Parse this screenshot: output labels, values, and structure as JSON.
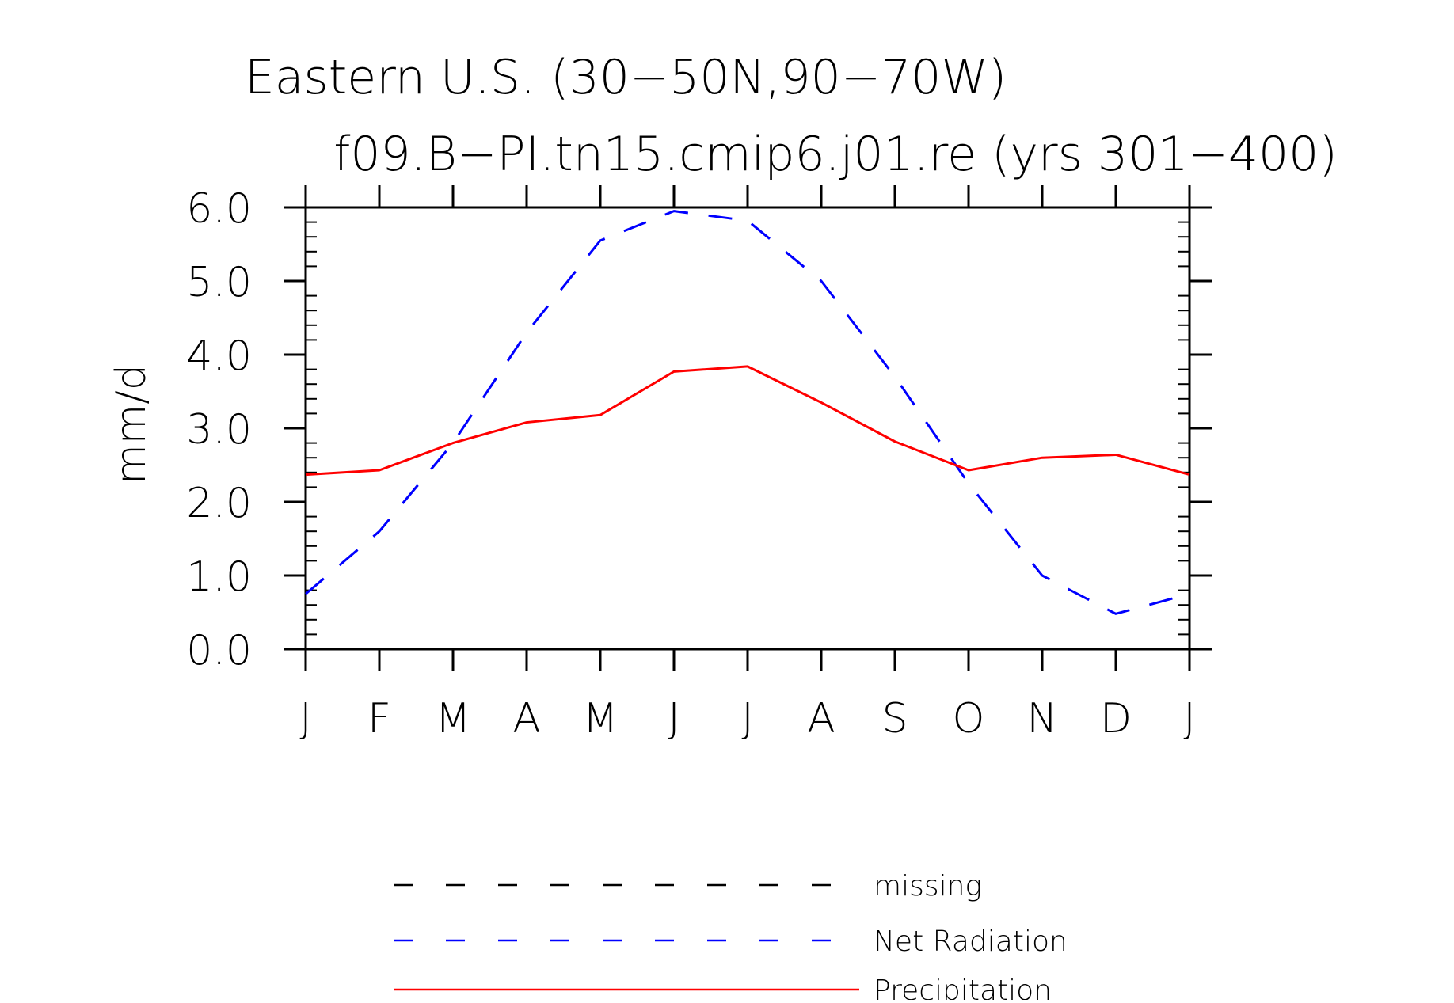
{
  "chart_data": {
    "type": "line",
    "title": "Eastern U.S. (30−50N,90−70W)",
    "subtitle": "f09.B−PI.tn15.cmip6.j01.re (yrs 301−400)",
    "xlabel": "",
    "ylabel": "mm/d",
    "categories": [
      "J",
      "F",
      "M",
      "A",
      "M",
      "J",
      "J",
      "A",
      "S",
      "O",
      "N",
      "D",
      "J"
    ],
    "ylim": [
      0,
      6
    ],
    "yticks": [
      "0.0",
      "1.0",
      "2.0",
      "3.0",
      "4.0",
      "5.0",
      "6.0"
    ],
    "grid": false,
    "legend_position": "bottom",
    "legend": [
      {
        "name": "missing",
        "color": "#000000",
        "style": "dashed"
      },
      {
        "name": "Net Radiation",
        "color": "#0000ff",
        "style": "dashed"
      },
      {
        "name": "Precipitation",
        "color": "#ff0000",
        "style": "solid"
      }
    ],
    "series": [
      {
        "name": "Net Radiation",
        "color": "#0000ff",
        "style": "dashed",
        "values": [
          0.75,
          1.6,
          2.8,
          4.3,
          5.55,
          5.95,
          5.82,
          5.0,
          3.7,
          2.25,
          1.0,
          0.48,
          0.75
        ]
      },
      {
        "name": "Precipitation",
        "color": "#ff0000",
        "style": "solid",
        "values": [
          2.37,
          2.43,
          2.8,
          3.08,
          3.18,
          3.77,
          3.84,
          3.35,
          2.82,
          2.43,
          2.6,
          2.64,
          2.37
        ]
      }
    ]
  }
}
